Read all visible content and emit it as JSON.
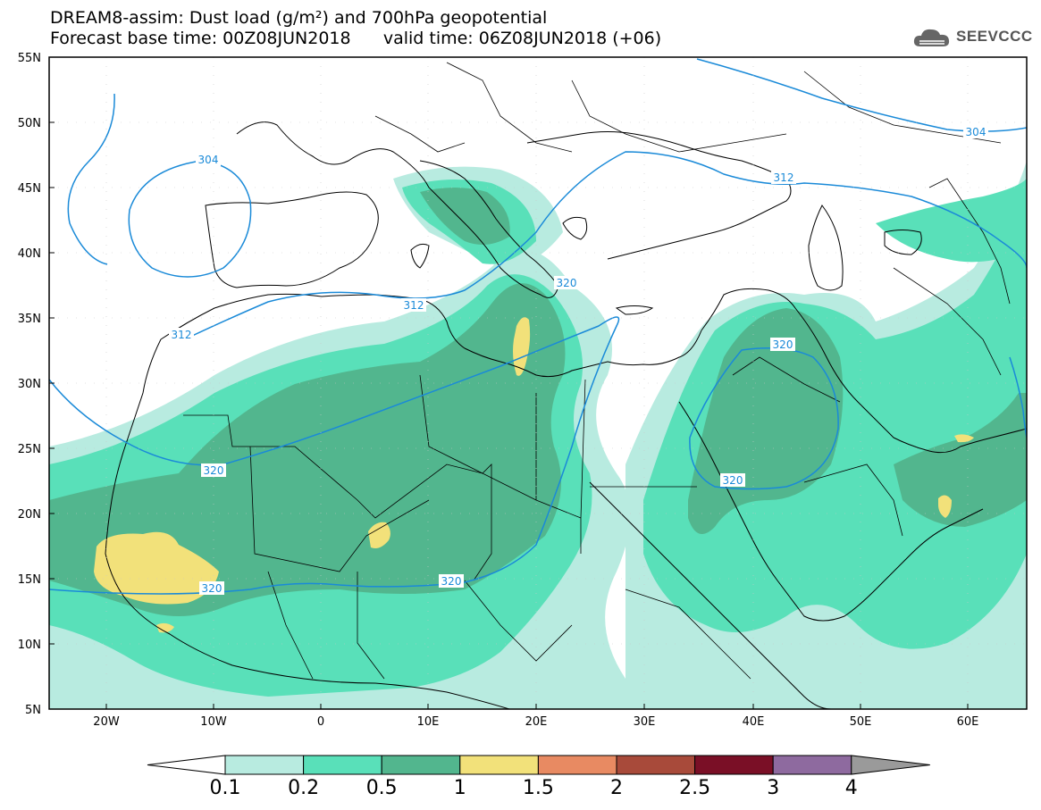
{
  "title_line1": "DREAM8-assim: Dust load (g/m²) and 700hPa geopotential",
  "title_line2": "Forecast base time: 00Z08JUN2018      valid time: 06Z08JUN2018 (+06)",
  "logo_text": "SEEVCCC",
  "lat_labels": [
    "55N",
    "50N",
    "45N",
    "40N",
    "35N",
    "30N",
    "25N",
    "20N",
    "15N",
    "10N",
    "5N"
  ],
  "lon_labels": [
    "20W",
    "10W",
    "0",
    "10E",
    "20E",
    "30E",
    "40E",
    "50E",
    "60E"
  ],
  "contour_labels": [
    "304",
    "304",
    "312",
    "312",
    "312",
    "320",
    "320",
    "320",
    "320",
    "320",
    "320"
  ],
  "colorbar": {
    "labels": [
      "0.1",
      "0.2",
      "0.5",
      "1",
      "1.5",
      "2",
      "2.5",
      "3",
      "4"
    ],
    "colors": [
      "#b8ebe0",
      "#59e0b9",
      "#52b68e",
      "#f2e17a",
      "#e88a62",
      "#a84a3a",
      "#7a0f26",
      "#8e6a9f"
    ],
    "under_color": "#ffffff",
    "over_color": "#9a9a9a"
  },
  "colors": {
    "land_outline": "#000000",
    "contour_line": "#1a8ad8",
    "frame": "#000000"
  }
}
